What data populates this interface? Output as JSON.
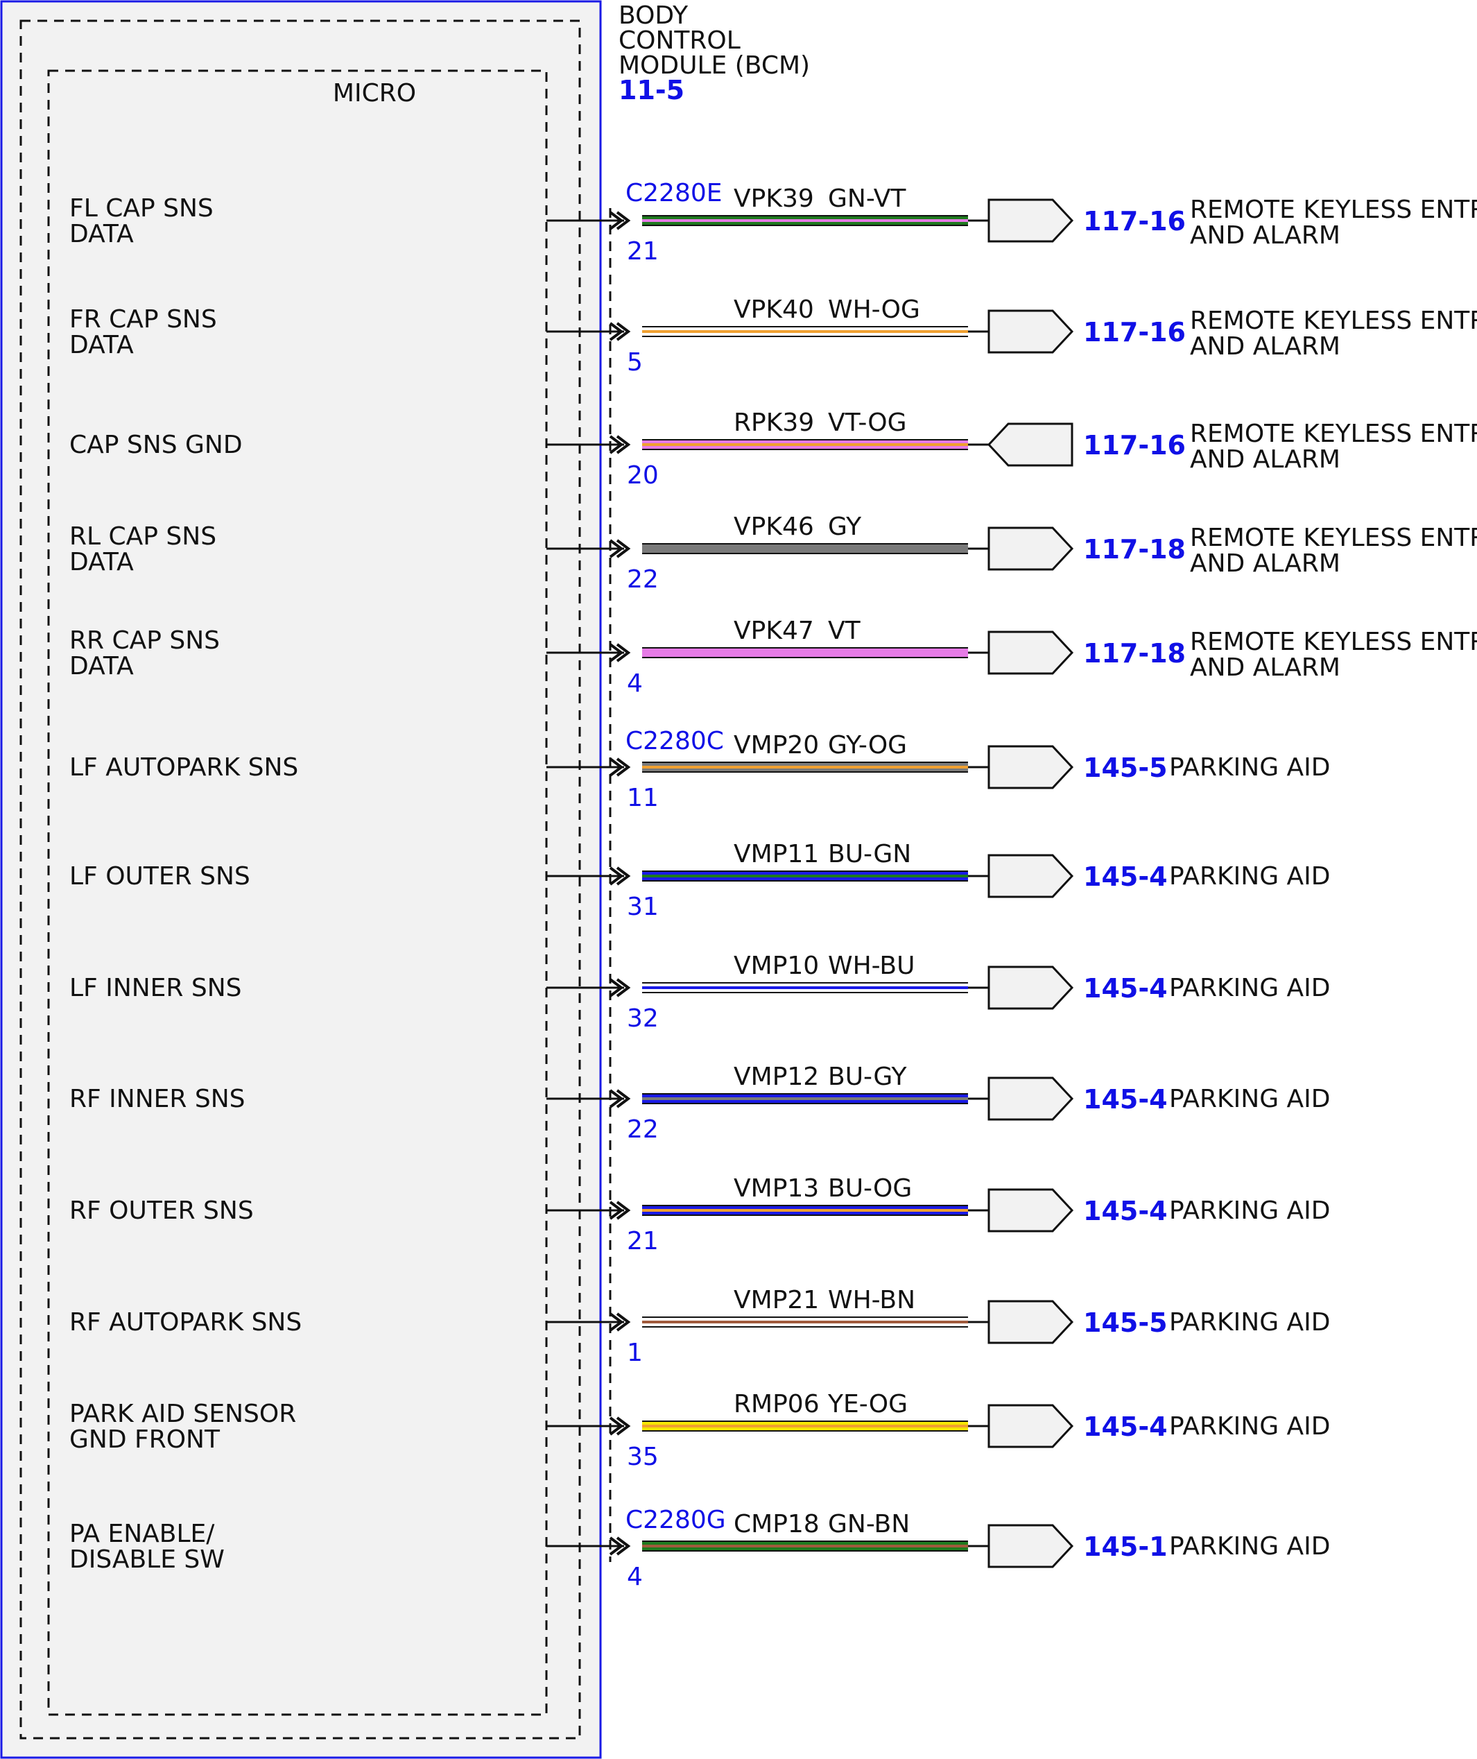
{
  "module": {
    "title_lines": [
      "BODY",
      "CONTROL",
      "MODULE (BCM)"
    ],
    "ref": "11-5",
    "inner_label": "MICRO"
  },
  "colors": {
    "module_border": "#1a1ae6",
    "module_fill": "#f2f2f2",
    "ref_blue": "#1010e6",
    "GN": "#1e7a1e",
    "VT": "#e67be6",
    "WH": "#ffffff",
    "OG": "#f0a030",
    "GY": "#7a7a7a",
    "BU": "#1a1ae6",
    "BN": "#a05a3c",
    "YE": "#f5e600",
    "PK": "#ff8acb"
  },
  "circuits": [
    {
      "pin_label": [
        "FL CAP SNS",
        "DATA"
      ],
      "connector": "C2280E",
      "circuit": "VPK39",
      "wire_color": "GN-VT",
      "pin": "21",
      "ref": "117-16",
      "dest": [
        "REMOTE KEYLESS ENTRY",
        "AND ALARM"
      ],
      "direction": "out"
    },
    {
      "pin_label": [
        "FR CAP SNS",
        "DATA"
      ],
      "connector": "",
      "circuit": "VPK40",
      "wire_color": "WH-OG",
      "pin": "5",
      "ref": "117-16",
      "dest": [
        "REMOTE KEYLESS ENTRY",
        "AND ALARM"
      ],
      "direction": "out"
    },
    {
      "pin_label": [
        "CAP SNS GND"
      ],
      "connector": "",
      "circuit": "RPK39",
      "wire_color": "VT-OG",
      "pin": "20",
      "ref": "117-16",
      "dest": [
        "REMOTE KEYLESS ENTRY",
        "AND ALARM"
      ],
      "direction": "in"
    },
    {
      "pin_label": [
        "RL CAP SNS",
        "DATA"
      ],
      "connector": "",
      "circuit": "VPK46",
      "wire_color": "GY",
      "pin": "22",
      "ref": "117-18",
      "dest": [
        "REMOTE KEYLESS ENTRY",
        "AND ALARM"
      ],
      "direction": "out"
    },
    {
      "pin_label": [
        "RR CAP SNS",
        "DATA"
      ],
      "connector": "",
      "circuit": "VPK47",
      "wire_color": "VT",
      "pin": "4",
      "ref": "117-18",
      "dest": [
        "REMOTE KEYLESS ENTRY",
        "AND ALARM"
      ],
      "direction": "out"
    },
    {
      "pin_label": [
        "LF AUTOPARK SNS"
      ],
      "connector": "C2280C",
      "circuit": "VMP20",
      "wire_color": "GY-OG",
      "pin": "11",
      "ref": "145-5",
      "dest": [
        "PARKING AID"
      ],
      "direction": "out"
    },
    {
      "pin_label": [
        "LF OUTER SNS"
      ],
      "connector": "",
      "circuit": "VMP11",
      "wire_color": "BU-GN",
      "pin": "31",
      "ref": "145-4",
      "dest": [
        "PARKING AID"
      ],
      "direction": "out"
    },
    {
      "pin_label": [
        "LF INNER SNS"
      ],
      "connector": "",
      "circuit": "VMP10",
      "wire_color": "WH-BU",
      "pin": "32",
      "ref": "145-4",
      "dest": [
        "PARKING AID"
      ],
      "direction": "out"
    },
    {
      "pin_label": [
        "RF INNER SNS"
      ],
      "connector": "",
      "circuit": "VMP12",
      "wire_color": "BU-GY",
      "pin": "22",
      "ref": "145-4",
      "dest": [
        "PARKING AID"
      ],
      "direction": "out"
    },
    {
      "pin_label": [
        "RF OUTER SNS"
      ],
      "connector": "",
      "circuit": "VMP13",
      "wire_color": "BU-OG",
      "pin": "21",
      "ref": "145-4",
      "dest": [
        "PARKING AID"
      ],
      "direction": "out"
    },
    {
      "pin_label": [
        "RF AUTOPARK SNS"
      ],
      "connector": "",
      "circuit": "VMP21",
      "wire_color": "WH-BN",
      "pin": "1",
      "ref": "145-5",
      "dest": [
        "PARKING AID"
      ],
      "direction": "out"
    },
    {
      "pin_label": [
        "PARK AID SENSOR",
        "GND FRONT"
      ],
      "connector": "",
      "circuit": "RMP06",
      "wire_color": "YE-OG",
      "pin": "35",
      "ref": "145-4",
      "dest": [
        "PARKING AID"
      ],
      "direction": "out"
    },
    {
      "pin_label": [
        "PA ENABLE/",
        "DISABLE SW"
      ],
      "connector": "C2280G",
      "circuit": "CMP18",
      "wire_color": "GN-BN",
      "pin": "4",
      "ref": "145-1",
      "dest": [
        "PARKING AID"
      ],
      "direction": "out"
    }
  ]
}
